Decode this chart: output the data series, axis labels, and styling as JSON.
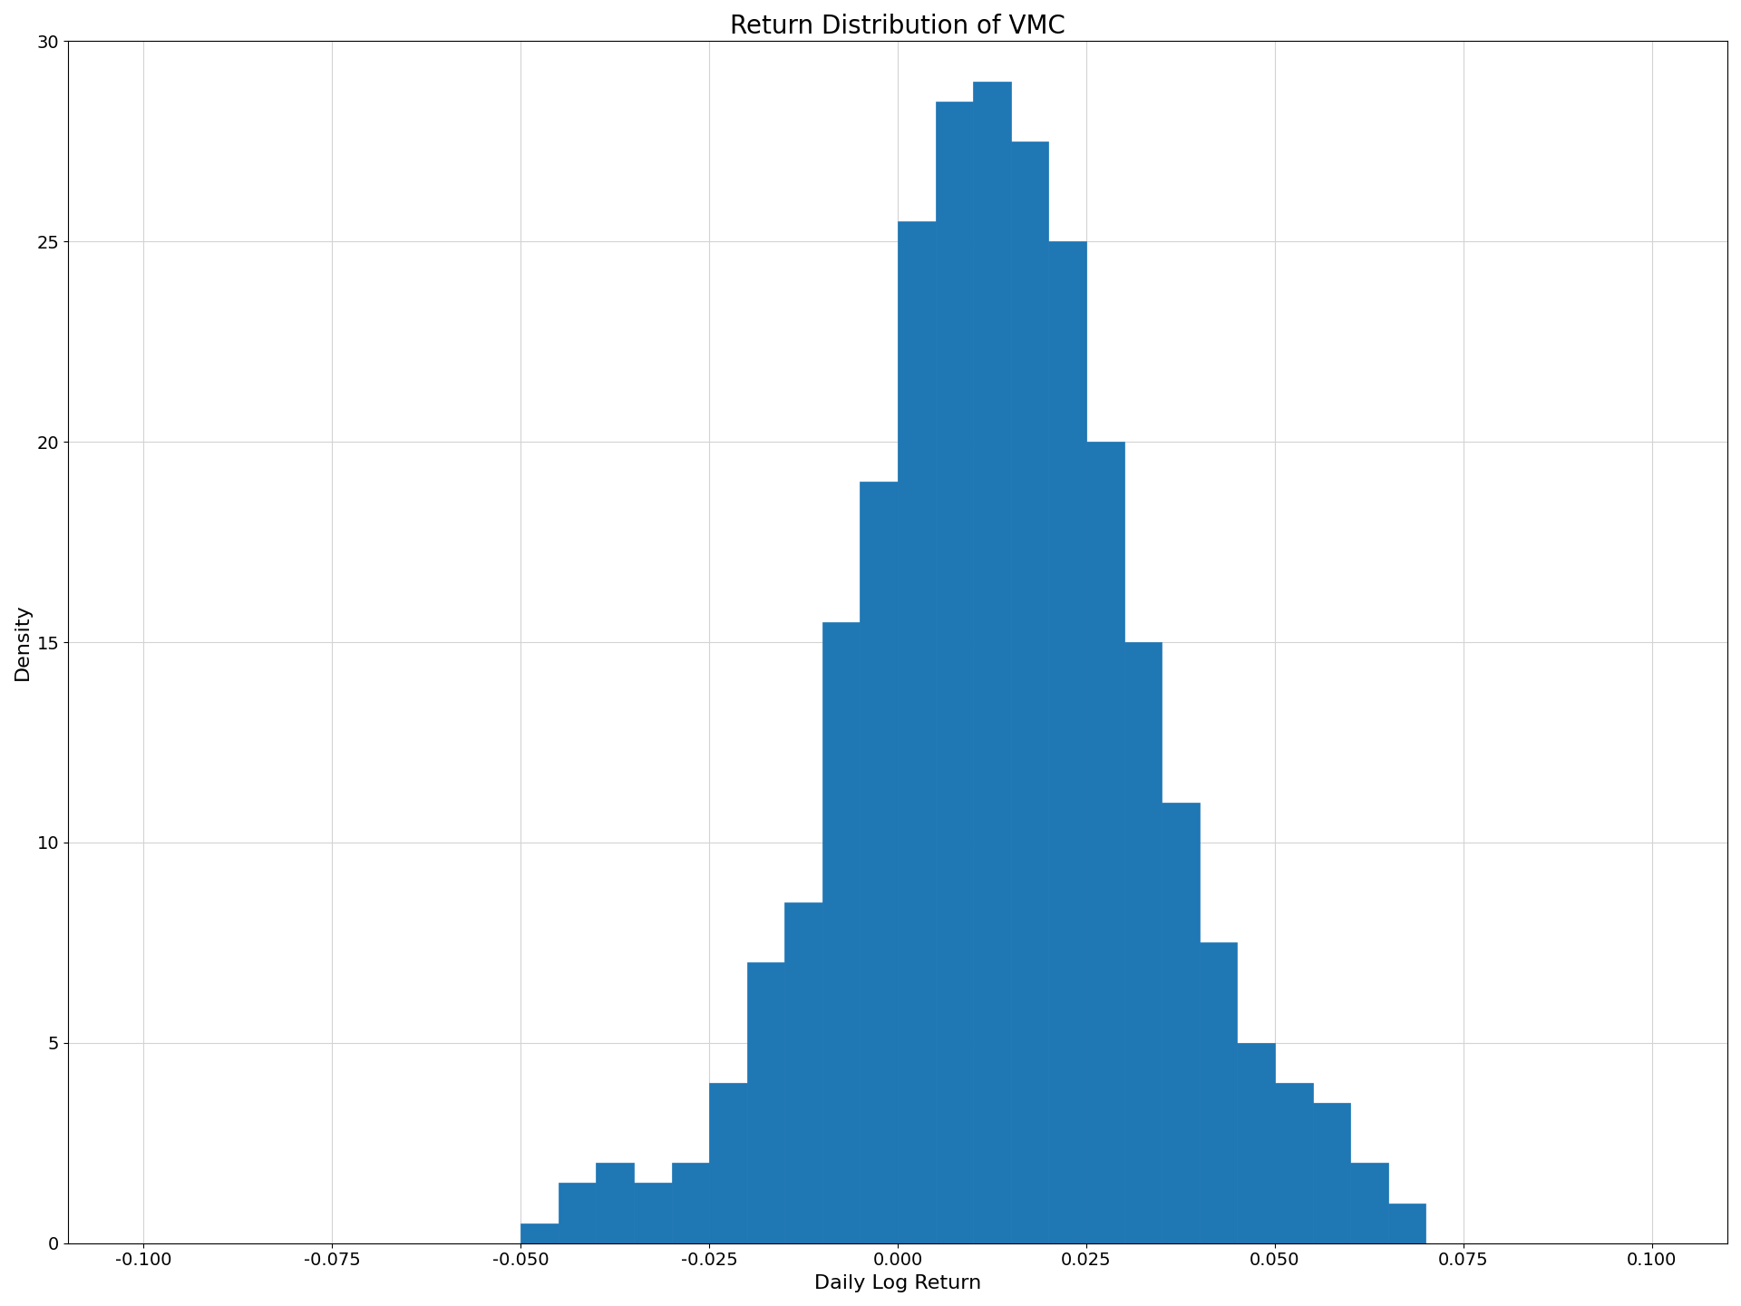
{
  "title": "Return Distribution of VMC",
  "xlabel": "Daily Log Return",
  "ylabel": "Density",
  "bar_color": "#1f77b4",
  "xlim": [
    -0.11,
    0.11
  ],
  "ylim": [
    0,
    30
  ],
  "xticks": [
    -0.1,
    -0.075,
    -0.05,
    -0.025,
    0.0,
    0.025,
    0.05,
    0.075,
    0.1
  ],
  "yticks": [
    0,
    5,
    10,
    15,
    20,
    25,
    30
  ],
  "bin_edges": [
    -0.11,
    -0.105,
    -0.1,
    -0.095,
    -0.09,
    -0.085,
    -0.08,
    -0.075,
    -0.07,
    -0.065,
    -0.06,
    -0.055,
    -0.05,
    -0.045,
    -0.04,
    -0.035,
    -0.03,
    -0.025,
    -0.02,
    -0.015,
    -0.01,
    -0.005,
    0.0,
    0.005,
    0.01,
    0.015,
    0.02,
    0.025,
    0.03,
    0.035,
    0.04,
    0.045,
    0.05,
    0.055,
    0.06,
    0.065,
    0.07
  ],
  "bin_heights": [
    0,
    0,
    0,
    0,
    0,
    0,
    0,
    0,
    0,
    0,
    0,
    0,
    0.5,
    1.5,
    2.0,
    1.5,
    2.0,
    4.0,
    7.0,
    8.5,
    15.5,
    19.0,
    25.5,
    28.5,
    29.0,
    27.5,
    25.0,
    20.0,
    15.0,
    11.0,
    7.5,
    5.0,
    4.0,
    3.5,
    2.0,
    1.0
  ],
  "title_fontsize": 20,
  "label_fontsize": 16,
  "tick_fontsize": 14,
  "figsize": [
    19.2,
    14.4
  ],
  "dpi": 100
}
